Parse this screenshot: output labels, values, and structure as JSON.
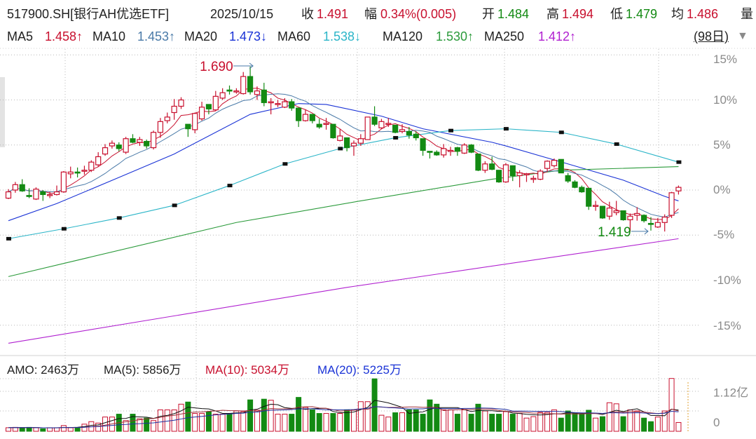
{
  "header": {
    "symbol": "517900.SH[银行AH优选ETF]",
    "date": "2025/10/15",
    "close_label": "收",
    "close": "1.491",
    "change_label": "幅",
    "change": "0.34%(0.005)",
    "open_label": "开",
    "open": "1.484",
    "high_label": "高",
    "high": "1.494",
    "low_label": "低",
    "low": "1.479",
    "avg_label": "均",
    "avg": "1.486",
    "volume_label": "量"
  },
  "ma_legend": [
    {
      "label": "MA5",
      "value": "1.458↑",
      "color": "#c8102e"
    },
    {
      "label": "MA10",
      "value": "1.453↑",
      "color": "#4a7aa8"
    },
    {
      "label": "MA20",
      "value": "1.473↓",
      "color": "#1a33d6"
    },
    {
      "label": "MA60",
      "value": "1.538↓",
      "color": "#2bb5c8"
    },
    {
      "label": "MA120",
      "value": "1.530↑",
      "color": "#2a9a3a"
    },
    {
      "label": "MA250",
      "value": "1.412↑",
      "color": "#b020d0"
    }
  ],
  "period_selector": {
    "label": "(98日)",
    "icon": "triangle-down-icon"
  },
  "volume_panel": {
    "amo": "AMO: 2463万",
    "ma5": "MA(5): 5856万",
    "ma10": "MA(10): 5034万",
    "ma20": "MA(20): 5225万",
    "axis_labels": [
      "1.12亿",
      "0"
    ]
  },
  "colors": {
    "up": "#c8102e",
    "down": "#138a13",
    "grid": "#b8b8b8"
  },
  "chart_data": [
    {
      "type": "candlestick",
      "title": "",
      "y_unit": "%",
      "y_ticks": [
        "15%",
        "10%",
        "5%",
        "0%",
        "-5%",
        "-10%",
        "-15%"
      ],
      "y_tick_values": [
        15,
        10,
        5,
        0,
        -5,
        -10,
        -15
      ],
      "ylim": [
        -17.5,
        15.5
      ],
      "grid": true,
      "candle_fields": [
        "open",
        "close",
        "high",
        "low"
      ],
      "candles": [
        [
          -0.9,
          -0.2,
          0.1,
          -1.0
        ],
        [
          0.0,
          0.6,
          0.9,
          -0.3
        ],
        [
          0.6,
          -0.1,
          1.2,
          -0.2
        ],
        [
          -0.6,
          -0.7,
          0.2,
          -0.9
        ],
        [
          -1.0,
          0.1,
          0.3,
          -1.1
        ],
        [
          -0.2,
          -0.5,
          0.0,
          -1.2
        ],
        [
          -0.6,
          -0.5,
          -0.2,
          -0.9
        ],
        [
          -0.5,
          -0.2,
          0.5,
          -0.6
        ],
        [
          -0.2,
          2.0,
          2.1,
          -0.3
        ],
        [
          1.8,
          2.0,
          2.6,
          1.3
        ],
        [
          2.0,
          1.9,
          2.5,
          1.4
        ],
        [
          2.1,
          2.2,
          2.7,
          1.7
        ],
        [
          2.2,
          3.1,
          3.3,
          2.0
        ],
        [
          2.8,
          3.7,
          4.2,
          2.6
        ],
        [
          4.0,
          4.7,
          5.1,
          3.8
        ],
        [
          4.9,
          5.2,
          5.5,
          4.6
        ],
        [
          5.0,
          4.6,
          5.3,
          4.3
        ],
        [
          4.2,
          5.7,
          5.9,
          4.0
        ],
        [
          5.7,
          5.3,
          6.2,
          5.2
        ],
        [
          5.3,
          5.6,
          5.9,
          4.9
        ],
        [
          5.4,
          4.9,
          5.6,
          4.6
        ],
        [
          4.7,
          6.4,
          6.6,
          4.5
        ],
        [
          6.4,
          7.6,
          8.0,
          5.8
        ],
        [
          7.7,
          8.1,
          8.6,
          7.4
        ],
        [
          8.6,
          9.3,
          10.1,
          7.8
        ],
        [
          9.3,
          10.0,
          10.3,
          9.0
        ],
        [
          7.3,
          6.8,
          7.3,
          5.9
        ],
        [
          6.7,
          8.5,
          8.6,
          6.3
        ],
        [
          7.9,
          9.2,
          9.8,
          7.7
        ],
        [
          9.5,
          9.0,
          9.5,
          8.4
        ],
        [
          8.9,
          10.4,
          11.0,
          8.8
        ],
        [
          10.2,
          10.8,
          11.3,
          10.0
        ],
        [
          11.1,
          11.0,
          11.6,
          10.6
        ],
        [
          10.9,
          11.0,
          11.3,
          10.7
        ],
        [
          10.7,
          12.6,
          13.1,
          10.6
        ],
        [
          12.6,
          10.9,
          13.7,
          10.6
        ],
        [
          10.6,
          11.0,
          11.5,
          10.0
        ],
        [
          11.1,
          9.7,
          11.9,
          9.3
        ],
        [
          9.7,
          9.8,
          10.2,
          8.4
        ],
        [
          9.6,
          9.6,
          10.0,
          9.2
        ],
        [
          9.2,
          9.8,
          10.2,
          9.1
        ],
        [
          9.8,
          9.1,
          10.1,
          8.8
        ],
        [
          9.1,
          7.7,
          9.1,
          7.0
        ],
        [
          7.7,
          8.4,
          8.9,
          7.6
        ],
        [
          8.4,
          7.7,
          8.4,
          7.4
        ],
        [
          7.3,
          7.0,
          7.9,
          6.8
        ],
        [
          7.3,
          7.4,
          8.0,
          6.7
        ],
        [
          7.3,
          5.8,
          7.3,
          5.7
        ],
        [
          5.5,
          6.0,
          6.8,
          5.4
        ],
        [
          5.8,
          4.7,
          5.8,
          4.3
        ],
        [
          4.9,
          5.2,
          5.5,
          3.8
        ],
        [
          5.2,
          5.7,
          6.2,
          4.9
        ],
        [
          5.6,
          8.1,
          8.1,
          5.6
        ],
        [
          8.1,
          7.3,
          9.3,
          7.1
        ],
        [
          6.9,
          7.6,
          7.9,
          6.8
        ],
        [
          7.3,
          7.4,
          8.0,
          7.0
        ],
        [
          7.2,
          6.4,
          7.2,
          6.3
        ],
        [
          6.5,
          6.7,
          7.3,
          6.3
        ],
        [
          6.5,
          6.1,
          7.0,
          5.7
        ],
        [
          6.2,
          5.8,
          6.5,
          5.5
        ],
        [
          5.7,
          4.4,
          5.7,
          3.8
        ],
        [
          4.3,
          4.2,
          4.3,
          3.5
        ],
        [
          4.2,
          3.9,
          4.4,
          3.8
        ],
        [
          3.9,
          4.6,
          5.1,
          3.6
        ],
        [
          4.4,
          4.4,
          4.8,
          3.8
        ],
        [
          4.7,
          4.3,
          4.8,
          3.8
        ],
        [
          4.1,
          5.0,
          5.2,
          4.0
        ],
        [
          5.0,
          4.2,
          5.1,
          4.1
        ],
        [
          4.0,
          2.2,
          4.0,
          2.1
        ],
        [
          2.2,
          2.9,
          3.2,
          1.9
        ],
        [
          2.9,
          2.3,
          3.7,
          2.2
        ],
        [
          2.2,
          0.9,
          2.2,
          0.8
        ],
        [
          0.9,
          2.8,
          3.0,
          0.8
        ],
        [
          2.7,
          1.6,
          2.7,
          1.0
        ],
        [
          1.6,
          1.9,
          2.2,
          0.3
        ],
        [
          1.8,
          1.8,
          1.9,
          0.9
        ],
        [
          1.3,
          1.3,
          1.6,
          0.8
        ],
        [
          1.2,
          2.1,
          2.3,
          1.1
        ],
        [
          2.4,
          3.2,
          3.3,
          2.0
        ],
        [
          2.7,
          3.3,
          3.5,
          2.5
        ],
        [
          3.4,
          1.9,
          3.4,
          1.9
        ],
        [
          1.6,
          1.0,
          1.9,
          0.8
        ],
        [
          0.9,
          0.3,
          1.1,
          0.2
        ],
        [
          0.3,
          -0.2,
          0.5,
          -0.3
        ],
        [
          0.2,
          -1.8,
          0.2,
          -2.2
        ],
        [
          -1.7,
          -1.7,
          -1.2,
          -2.3
        ],
        [
          -1.8,
          -3.1,
          -1.8,
          -3.2
        ],
        [
          -2.9,
          -2.0,
          -1.3,
          -3.3
        ],
        [
          -2.5,
          -2.3,
          -1.2,
          -2.8
        ],
        [
          -2.3,
          -3.3,
          -2.3,
          -3.4
        ],
        [
          -3.3,
          -2.9,
          -2.6,
          -4.6
        ],
        [
          -2.8,
          -2.6,
          -1.9,
          -3.4
        ],
        [
          -2.8,
          -3.4,
          -2.7,
          -3.6
        ],
        [
          -3.7,
          -3.8,
          -3.0,
          -4.5
        ],
        [
          -4.1,
          -3.6,
          -3.1,
          -4.2
        ],
        [
          -3.6,
          -3.0,
          -2.7,
          -4.6
        ],
        [
          -2.8,
          -0.3,
          -0.2,
          -3.1
        ],
        [
          -0.1,
          0.3,
          0.5,
          -0.5
        ]
      ],
      "ma_lines": [
        {
          "name": "MA20",
          "color": "#1a33d6",
          "points": [
            [
              0,
              -3.4
            ],
            [
              7,
              -1.5
            ],
            [
              16,
              1.4
            ],
            [
              24,
              4.0
            ],
            [
              35,
              8.4
            ],
            [
              42,
              9.6
            ],
            [
              46,
              9.5
            ],
            [
              54,
              8.2
            ],
            [
              60,
              6.8
            ],
            [
              70,
              5.3
            ],
            [
              72,
              4.9
            ],
            [
              81,
              2.9
            ],
            [
              89,
              1.1
            ],
            [
              95,
              -0.7
            ],
            [
              97,
              -1.2
            ]
          ]
        },
        {
          "name": "MA60",
          "color": "#2bb5c8",
          "markers": true,
          "points": [
            [
              0,
              -5.4
            ],
            [
              8,
              -4.3
            ],
            [
              16,
              -3.1
            ],
            [
              24,
              -1.7
            ],
            [
              32,
              0.5
            ],
            [
              40,
              2.9
            ],
            [
              48,
              4.6
            ],
            [
              56,
              5.8
            ],
            [
              64,
              6.6
            ],
            [
              72,
              6.8
            ],
            [
              80,
              6.4
            ],
            [
              88,
              5.1
            ],
            [
              97,
              3.1
            ]
          ]
        },
        {
          "name": "MA120",
          "color": "#2a9a3a",
          "points": [
            [
              0,
              -9.6
            ],
            [
              33,
              -3.6
            ],
            [
              51,
              -1.2
            ],
            [
              70,
              1.2
            ],
            [
              80,
              2.2
            ],
            [
              97,
              2.6
            ]
          ]
        },
        {
          "name": "MA250",
          "color": "#b020d0",
          "points": [
            [
              0,
              -17.0
            ],
            [
              49,
              -10.8
            ],
            [
              97,
              -5.4
            ]
          ]
        }
      ],
      "computed_ma": [
        {
          "name": "MA5",
          "period": 5,
          "color": "#c8102e"
        },
        {
          "name": "MA10",
          "period": 10,
          "color": "#4a7aa8"
        }
      ],
      "annotations": [
        {
          "text": "1.690",
          "kind": "high",
          "index": 35,
          "color": "#c8102e"
        },
        {
          "text": "1.419",
          "kind": "low",
          "index": 93,
          "color": "#138a13"
        }
      ]
    },
    {
      "type": "bar",
      "title": "AMO",
      "unit": "万",
      "y_ticks": [
        "1.12亿",
        "0"
      ],
      "y_tick_values": [
        11200,
        0
      ],
      "values": [
        1000,
        1100,
        1000,
        1100,
        1000,
        700,
        1000,
        1000,
        1600,
        1000,
        1000,
        2000,
        2700,
        2300,
        4000,
        4000,
        4800,
        3000,
        4800,
        3500,
        3700,
        3000,
        6000,
        6000,
        6000,
        7600,
        8200,
        5000,
        5000,
        5500,
        4800,
        4800,
        5000,
        5700,
        5500,
        8800,
        5900,
        9000,
        8700,
        4800,
        4800,
        4800,
        9500,
        6700,
        6000,
        5000,
        5000,
        5000,
        5000,
        6000,
        6000,
        8300,
        8300,
        14700,
        4500,
        4000,
        5200,
        5200,
        6000,
        6000,
        4800,
        8800,
        7600,
        6000,
        6000,
        4800,
        6000,
        4800,
        7600,
        5700,
        4800,
        4800,
        5500,
        4800,
        5000,
        3700,
        4100,
        5300,
        5300,
        6000,
        3700,
        5700,
        5000,
        4800,
        5900,
        3700,
        4100,
        8000,
        7700,
        4100,
        6000,
        5700,
        3700,
        2700,
        4000,
        5700,
        14800,
        2463
      ],
      "ma_lines": [
        {
          "name": "MA(5)",
          "period": 5,
          "color": "#111111"
        },
        {
          "name": "MA(10)",
          "period": 10,
          "color": "#a0303a"
        },
        {
          "name": "MA(20)",
          "period": 20,
          "color": "#2030a0"
        }
      ]
    }
  ]
}
